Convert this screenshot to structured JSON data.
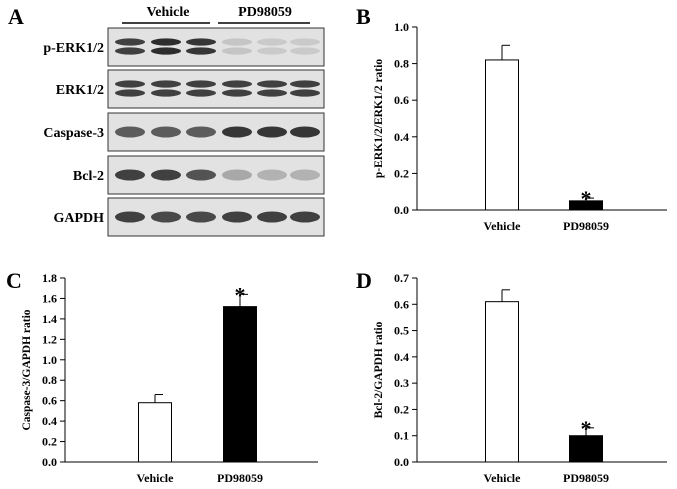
{
  "figure": {
    "blot": {
      "letter": "A",
      "groups": [
        "Vehicle",
        "PD98059"
      ],
      "rows": [
        {
          "label": "p-ERK1/2",
          "intensity": [
            0.85,
            0.95,
            0.9,
            0.15,
            0.12,
            0.12
          ],
          "double": true
        },
        {
          "label": "ERK1/2",
          "intensity": [
            0.85,
            0.85,
            0.85,
            0.85,
            0.85,
            0.85
          ],
          "double": true
        },
        {
          "label": "Caspase-3",
          "intensity": [
            0.7,
            0.7,
            0.7,
            0.9,
            0.9,
            0.9
          ],
          "double": false
        },
        {
          "label": "Bcl-2",
          "intensity": [
            0.85,
            0.85,
            0.75,
            0.3,
            0.25,
            0.25
          ],
          "double": false
        },
        {
          "label": "GAPDH",
          "intensity": [
            0.85,
            0.8,
            0.8,
            0.85,
            0.85,
            0.85
          ],
          "double": false
        }
      ]
    }
  },
  "chart_data": [
    {
      "panel": "B",
      "type": "bar",
      "categories": [
        "Vehicle",
        "PD98059"
      ],
      "values": [
        0.82,
        0.05
      ],
      "errors": [
        0.08,
        0.015
      ],
      "fills": [
        "#ffffff",
        "#000000"
      ],
      "significance": [
        "",
        "*"
      ],
      "ylabel": "p-ERK1/2/ERK1/2 ratio",
      "ylim": [
        0,
        1.0
      ],
      "yticks": [
        "0.0",
        "0.2",
        "0.4",
        "0.6",
        "0.8",
        "1.0"
      ],
      "ytick_values": [
        0,
        0.2,
        0.4,
        0.6,
        0.8,
        1.0
      ]
    },
    {
      "panel": "C",
      "type": "bar",
      "categories": [
        "Vehicle",
        "PD98059"
      ],
      "values": [
        0.58,
        1.52
      ],
      "errors": [
        0.08,
        0.12
      ],
      "fills": [
        "#ffffff",
        "#000000"
      ],
      "significance": [
        "",
        "*"
      ],
      "ylabel": "Caspase-3/GAPDH ratio",
      "ylim": [
        0,
        1.8
      ],
      "yticks": [
        "0.0",
        "0.2",
        "0.4",
        "0.6",
        "0.8",
        "1.0",
        "1.2",
        "1.4",
        "1.6",
        "1.8"
      ],
      "ytick_values": [
        0,
        0.2,
        0.4,
        0.6,
        0.8,
        1.0,
        1.2,
        1.4,
        1.6,
        1.8
      ]
    },
    {
      "panel": "D",
      "type": "bar",
      "categories": [
        "Vehicle",
        "PD98059"
      ],
      "values": [
        0.61,
        0.1
      ],
      "errors": [
        0.045,
        0.03
      ],
      "fills": [
        "#ffffff",
        "#000000"
      ],
      "significance": [
        "",
        "*"
      ],
      "ylabel": "Bcl-2/GAPDH ratio",
      "ylim": [
        0,
        0.7
      ],
      "yticks": [
        "0.0",
        "0.1",
        "0.2",
        "0.3",
        "0.4",
        "0.5",
        "0.6",
        "0.7"
      ],
      "ytick_values": [
        0,
        0.1,
        0.2,
        0.3,
        0.4,
        0.5,
        0.6,
        0.7
      ]
    }
  ]
}
